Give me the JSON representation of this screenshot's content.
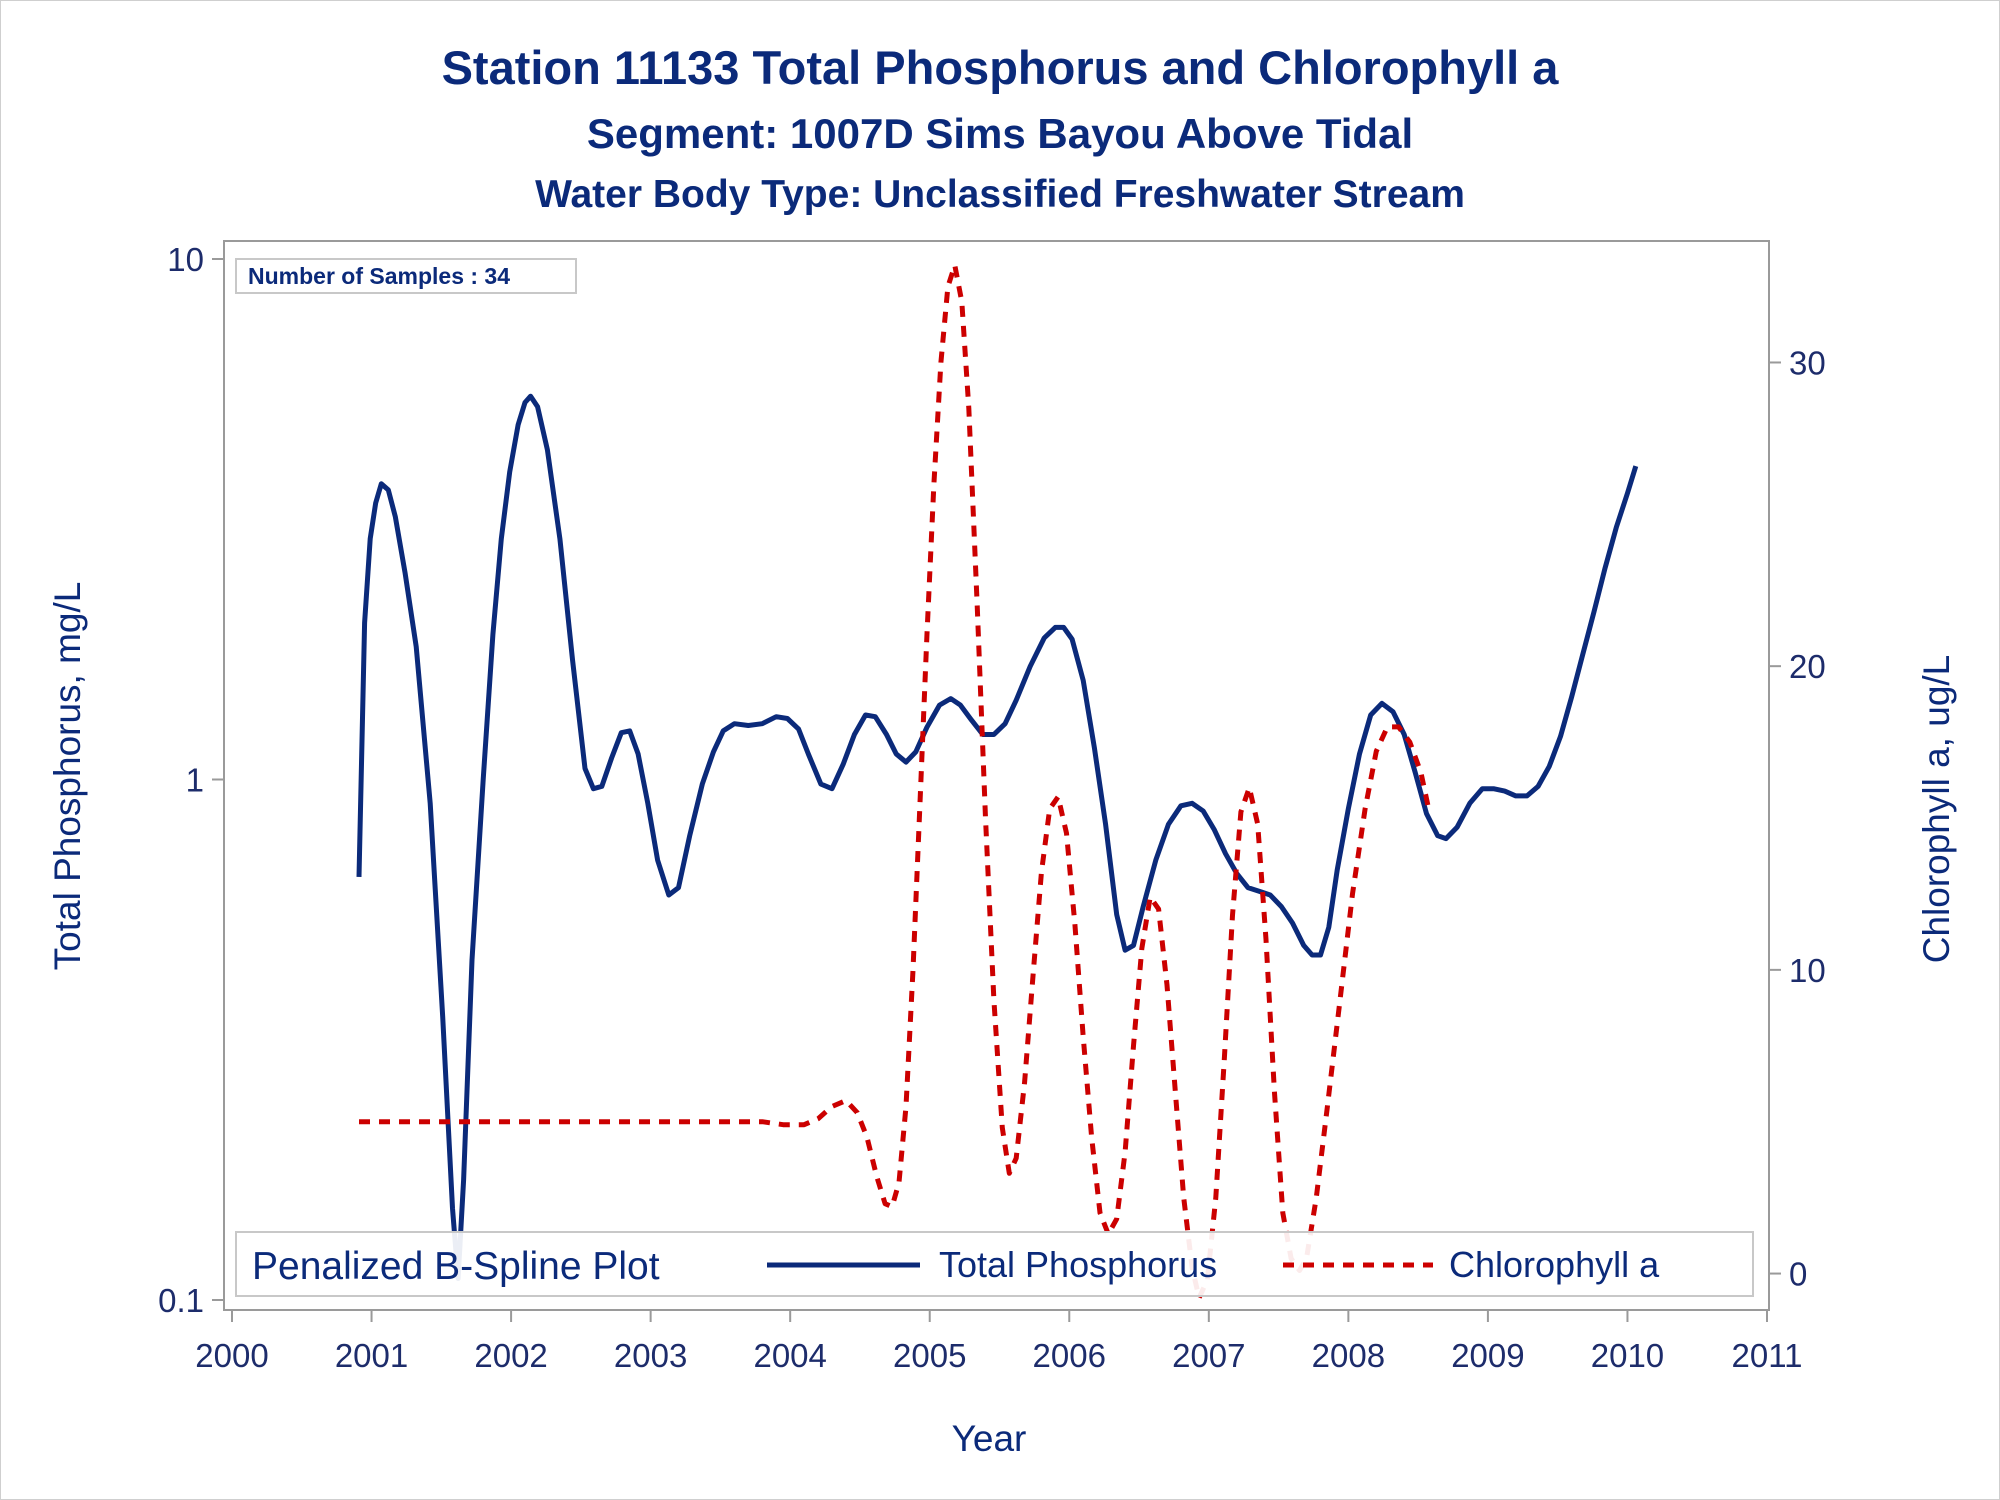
{
  "titles": {
    "line1": "Station 11133  Total Phosphorus and Chlorophyll a",
    "line2": "Segment: 1007D  Sims Bayou Above Tidal",
    "line3": "Water Body Type: Unclassified Freshwater Stream"
  },
  "inset": {
    "samples": "Number of Samples : 34"
  },
  "legend": {
    "title": "Penalized B-Spline Plot",
    "tp_label": "Total Phosphorus",
    "chl_label": "Chlorophyll a"
  },
  "colors": {
    "tp": "#0b2a7a",
    "chl": "#cc0000",
    "text": "#1d2c6b",
    "axis": "#9a9a9a"
  },
  "chart_data": {
    "type": "line",
    "title": "Station 11133  Total Phosphorus and Chlorophyll a",
    "xlabel": "Year",
    "ylabel": "Total Phosphorus, mg/L",
    "y2label": "Chlorophyll a, ug/L",
    "xlim": [
      2000,
      2011
    ],
    "ylim": [
      0.1,
      10
    ],
    "yscale": "log",
    "y2lim": [
      -1.2,
      34
    ],
    "x_ticks": [
      "2000",
      "2001",
      "2002",
      "2003",
      "2004",
      "2005",
      "2006",
      "2007",
      "2008",
      "2009",
      "2010",
      "2011"
    ],
    "y_ticks": [
      "0.1",
      "1",
      "10"
    ],
    "y2_ticks": [
      "0",
      "10",
      "20",
      "30"
    ],
    "legend_position": "bottom-inside",
    "series": [
      {
        "name": "Total Phosphorus",
        "axis": "left",
        "style": "solid",
        "points": [
          [
            2000.91,
            0.65
          ],
          [
            2000.95,
            2.0
          ],
          [
            2000.99,
            2.9
          ],
          [
            2001.03,
            3.4
          ],
          [
            2001.07,
            3.7
          ],
          [
            2001.12,
            3.6
          ],
          [
            2001.17,
            3.2
          ],
          [
            2001.24,
            2.5
          ],
          [
            2001.32,
            1.8
          ],
          [
            2001.42,
            0.9
          ],
          [
            2001.51,
            0.35
          ],
          [
            2001.58,
            0.15
          ],
          [
            2001.62,
            0.11
          ],
          [
            2001.66,
            0.17
          ],
          [
            2001.72,
            0.45
          ],
          [
            2001.8,
            1.0
          ],
          [
            2001.87,
            1.9
          ],
          [
            2001.93,
            2.9
          ],
          [
            2001.99,
            3.9
          ],
          [
            2002.05,
            4.8
          ],
          [
            2002.1,
            5.3
          ],
          [
            2002.14,
            5.45
          ],
          [
            2002.19,
            5.2
          ],
          [
            2002.26,
            4.3
          ],
          [
            2002.35,
            2.9
          ],
          [
            2002.44,
            1.7
          ],
          [
            2002.53,
            1.05
          ],
          [
            2002.59,
            0.96
          ],
          [
            2002.65,
            0.97
          ],
          [
            2002.72,
            1.1
          ],
          [
            2002.79,
            1.23
          ],
          [
            2002.85,
            1.24
          ],
          [
            2002.91,
            1.12
          ],
          [
            2002.98,
            0.9
          ],
          [
            2003.05,
            0.7
          ],
          [
            2003.13,
            0.6
          ],
          [
            2003.2,
            0.62
          ],
          [
            2003.28,
            0.78
          ],
          [
            2003.37,
            0.98
          ],
          [
            2003.45,
            1.13
          ],
          [
            2003.52,
            1.24
          ],
          [
            2003.6,
            1.28
          ],
          [
            2003.7,
            1.27
          ],
          [
            2003.8,
            1.28
          ],
          [
            2003.9,
            1.32
          ],
          [
            2003.98,
            1.31
          ],
          [
            2004.06,
            1.25
          ],
          [
            2004.13,
            1.12
          ],
          [
            2004.22,
            0.98
          ],
          [
            2004.3,
            0.96
          ],
          [
            2004.38,
            1.07
          ],
          [
            2004.46,
            1.22
          ],
          [
            2004.54,
            1.33
          ],
          [
            2004.61,
            1.32
          ],
          [
            2004.69,
            1.22
          ],
          [
            2004.76,
            1.12
          ],
          [
            2004.83,
            1.08
          ],
          [
            2004.9,
            1.13
          ],
          [
            2004.98,
            1.26
          ],
          [
            2005.07,
            1.39
          ],
          [
            2005.15,
            1.43
          ],
          [
            2005.22,
            1.39
          ],
          [
            2005.3,
            1.3
          ],
          [
            2005.38,
            1.22
          ],
          [
            2005.46,
            1.22
          ],
          [
            2005.54,
            1.28
          ],
          [
            2005.62,
            1.42
          ],
          [
            2005.72,
            1.65
          ],
          [
            2005.82,
            1.87
          ],
          [
            2005.9,
            1.96
          ],
          [
            2005.96,
            1.96
          ],
          [
            2006.02,
            1.86
          ],
          [
            2006.1,
            1.55
          ],
          [
            2006.18,
            1.15
          ],
          [
            2006.26,
            0.82
          ],
          [
            2006.34,
            0.55
          ],
          [
            2006.4,
            0.47
          ],
          [
            2006.46,
            0.48
          ],
          [
            2006.53,
            0.57
          ],
          [
            2006.62,
            0.7
          ],
          [
            2006.71,
            0.82
          ],
          [
            2006.8,
            0.89
          ],
          [
            2006.88,
            0.9
          ],
          [
            2006.96,
            0.87
          ],
          [
            2007.04,
            0.8
          ],
          [
            2007.12,
            0.72
          ],
          [
            2007.2,
            0.66
          ],
          [
            2007.28,
            0.62
          ],
          [
            2007.36,
            0.61
          ],
          [
            2007.44,
            0.6
          ],
          [
            2007.52,
            0.57
          ],
          [
            2007.6,
            0.53
          ],
          [
            2007.68,
            0.48
          ],
          [
            2007.74,
            0.46
          ],
          [
            2007.8,
            0.46
          ],
          [
            2007.86,
            0.52
          ],
          [
            2007.92,
            0.67
          ],
          [
            2008.0,
            0.88
          ],
          [
            2008.08,
            1.12
          ],
          [
            2008.16,
            1.33
          ],
          [
            2008.24,
            1.4
          ],
          [
            2008.32,
            1.35
          ],
          [
            2008.4,
            1.22
          ],
          [
            2008.48,
            1.03
          ],
          [
            2008.56,
            0.86
          ],
          [
            2008.64,
            0.78
          ],
          [
            2008.7,
            0.77
          ],
          [
            2008.78,
            0.81
          ],
          [
            2008.87,
            0.9
          ],
          [
            2008.96,
            0.96
          ],
          [
            2009.04,
            0.96
          ],
          [
            2009.12,
            0.95
          ],
          [
            2009.2,
            0.93
          ],
          [
            2009.28,
            0.93
          ],
          [
            2009.36,
            0.97
          ],
          [
            2009.44,
            1.06
          ],
          [
            2009.52,
            1.21
          ],
          [
            2009.6,
            1.44
          ],
          [
            2009.68,
            1.74
          ],
          [
            2009.76,
            2.1
          ],
          [
            2009.84,
            2.55
          ],
          [
            2009.92,
            3.05
          ],
          [
            2010.0,
            3.55
          ],
          [
            2010.06,
            4.0
          ]
        ]
      },
      {
        "name": "Chlorophyll a",
        "axis": "right",
        "style": "dashed",
        "points": [
          [
            2000.91,
            5.0
          ],
          [
            2001.2,
            5.0
          ],
          [
            2001.6,
            5.0
          ],
          [
            2002.0,
            5.0
          ],
          [
            2002.5,
            5.0
          ],
          [
            2003.0,
            5.0
          ],
          [
            2003.5,
            5.0
          ],
          [
            2003.8,
            5.0
          ],
          [
            2003.95,
            4.9
          ],
          [
            2004.1,
            4.9
          ],
          [
            2004.2,
            5.1
          ],
          [
            2004.3,
            5.5
          ],
          [
            2004.4,
            5.7
          ],
          [
            2004.48,
            5.3
          ],
          [
            2004.55,
            4.5
          ],
          [
            2004.62,
            3.2
          ],
          [
            2004.68,
            2.3
          ],
          [
            2004.73,
            2.2
          ],
          [
            2004.78,
            3.0
          ],
          [
            2004.83,
            5.5
          ],
          [
            2004.88,
            10.0
          ],
          [
            2004.93,
            15.5
          ],
          [
            2004.98,
            21.0
          ],
          [
            2005.03,
            26.0
          ],
          [
            2005.08,
            30.0
          ],
          [
            2005.13,
            32.5
          ],
          [
            2005.18,
            33.2
          ],
          [
            2005.23,
            32.0
          ],
          [
            2005.28,
            28.5
          ],
          [
            2005.34,
            22.0
          ],
          [
            2005.4,
            15.0
          ],
          [
            2005.46,
            9.0
          ],
          [
            2005.52,
            4.8
          ],
          [
            2005.57,
            3.3
          ],
          [
            2005.62,
            3.8
          ],
          [
            2005.68,
            6.3
          ],
          [
            2005.74,
            9.8
          ],
          [
            2005.8,
            13.2
          ],
          [
            2005.86,
            15.3
          ],
          [
            2005.92,
            15.7
          ],
          [
            2005.98,
            14.5
          ],
          [
            2006.04,
            11.5
          ],
          [
            2006.1,
            7.8
          ],
          [
            2006.16,
            4.5
          ],
          [
            2006.22,
            2.0
          ],
          [
            2006.28,
            1.3
          ],
          [
            2006.34,
            1.8
          ],
          [
            2006.4,
            4.0
          ],
          [
            2006.46,
            7.5
          ],
          [
            2006.52,
            10.7
          ],
          [
            2006.58,
            12.4
          ],
          [
            2006.64,
            12.0
          ],
          [
            2006.7,
            9.5
          ],
          [
            2006.76,
            6.0
          ],
          [
            2006.82,
            2.5
          ],
          [
            2006.88,
            0.2
          ],
          [
            2006.93,
            -0.8
          ],
          [
            2006.99,
            -0.2
          ],
          [
            2007.05,
            2.5
          ],
          [
            2007.11,
            7.0
          ],
          [
            2007.17,
            11.8
          ],
          [
            2007.23,
            15.2
          ],
          [
            2007.29,
            16.0
          ],
          [
            2007.35,
            14.8
          ],
          [
            2007.41,
            11.0
          ],
          [
            2007.47,
            6.0
          ],
          [
            2007.53,
            2.0
          ],
          [
            2007.59,
            0.5
          ],
          [
            2007.65,
            0.1
          ],
          [
            2007.7,
            0.5
          ],
          [
            2007.77,
            2.5
          ],
          [
            2007.85,
            5.5
          ],
          [
            2007.94,
            9.0
          ],
          [
            2008.03,
            12.5
          ],
          [
            2008.12,
            15.3
          ],
          [
            2008.2,
            17.2
          ],
          [
            2008.28,
            18.0
          ],
          [
            2008.36,
            18.0
          ],
          [
            2008.44,
            17.5
          ],
          [
            2008.52,
            16.5
          ],
          [
            2008.58,
            15.2
          ]
        ]
      }
    ]
  }
}
